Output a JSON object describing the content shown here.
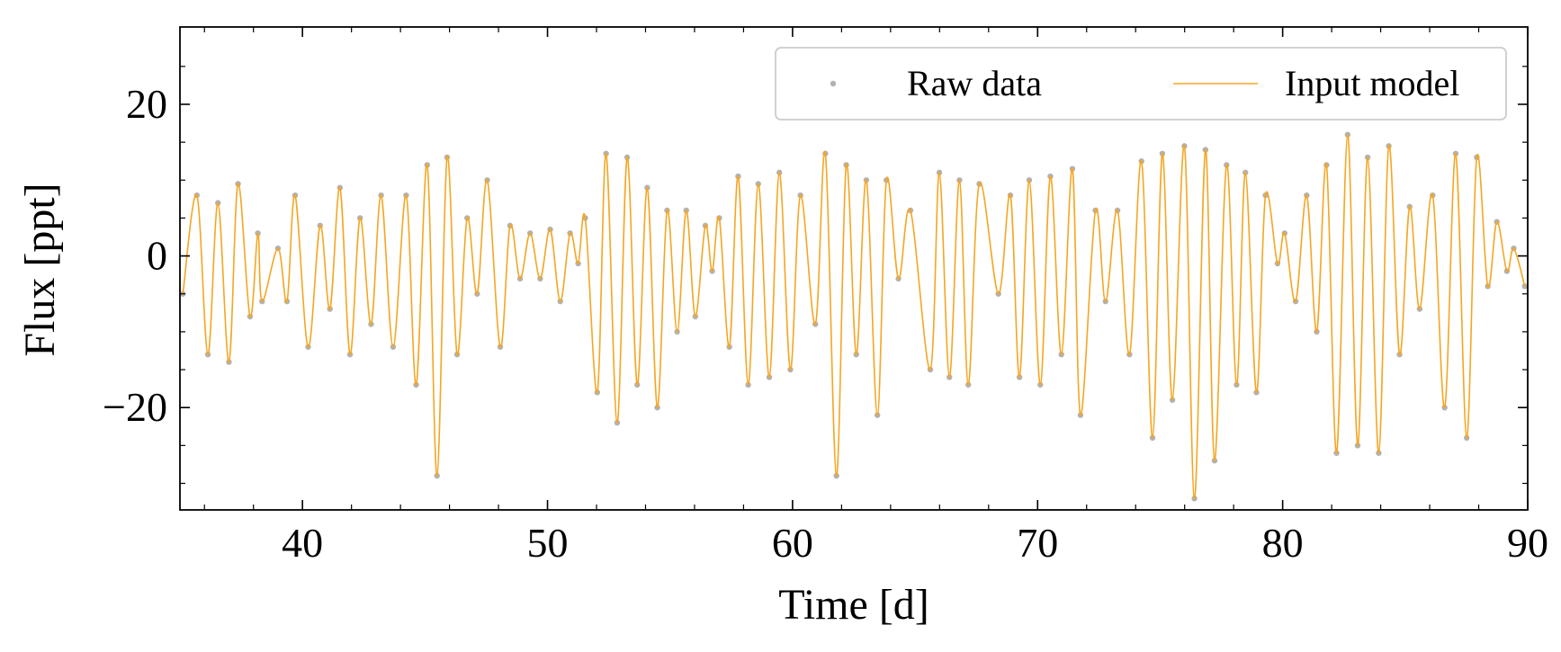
{
  "chart_data": {
    "type": "line",
    "xlabel": "Time [d]",
    "ylabel": "Flux [ppt]",
    "xlim": [
      35,
      90
    ],
    "ylim": [
      -33.5,
      30.2
    ],
    "xticks": [
      40,
      50,
      60,
      70,
      80,
      90
    ],
    "yticks": [
      {
        "value": -20,
        "label": "−20"
      },
      0,
      20
    ],
    "minor_xticks": [
      36,
      38,
      42,
      44,
      46,
      48,
      52,
      54,
      56,
      58,
      62,
      64,
      66,
      68,
      72,
      74,
      76,
      78,
      82,
      84,
      86,
      88
    ],
    "minor_yticks": [
      -30,
      -25,
      -15,
      -10,
      -5,
      5,
      10,
      15,
      25
    ],
    "legend": "upper right",
    "x": [
      35.12,
      35.69,
      36.14,
      36.55,
      37.0,
      37.37,
      37.86,
      38.18,
      38.35,
      39.0,
      39.37,
      39.7,
      40.23,
      40.72,
      41.12,
      41.53,
      41.94,
      42.35,
      42.8,
      43.21,
      43.7,
      44.23,
      44.64,
      45.09,
      45.49,
      45.9,
      46.31,
      46.72,
      47.13,
      47.54,
      48.07,
      48.47,
      48.88,
      49.29,
      49.7,
      50.11,
      50.52,
      50.92,
      51.25,
      51.54,
      52.03,
      52.39,
      52.84,
      53.25,
      53.66,
      54.07,
      54.48,
      54.88,
      55.29,
      55.66,
      56.03,
      56.44,
      56.72,
      57.01,
      57.42,
      57.78,
      58.19,
      58.6,
      59.05,
      59.46,
      59.91,
      60.32,
      60.93,
      61.34,
      61.79,
      62.19,
      62.6,
      63.01,
      63.46,
      63.83,
      64.32,
      64.81,
      65.62,
      65.99,
      66.4,
      66.81,
      67.17,
      67.62,
      68.4,
      68.89,
      69.26,
      69.66,
      70.11,
      70.52,
      70.97,
      71.42,
      71.75,
      72.36,
      72.77,
      73.26,
      73.75,
      74.24,
      74.69,
      75.09,
      75.5,
      75.99,
      76.4,
      76.85,
      77.22,
      77.71,
      78.12,
      78.48,
      78.93,
      79.3,
      79.79,
      80.08,
      80.53,
      80.98,
      81.39,
      81.79,
      82.2,
      82.65,
      83.06,
      83.47,
      83.92,
      84.33,
      84.77,
      85.18,
      85.59,
      86.12,
      86.61,
      87.06,
      87.51,
      87.92,
      88.37,
      88.74,
      89.15,
      89.43,
      89.88
    ],
    "series": [
      {
        "name": "Raw data",
        "style": "markers",
        "color": "#555555",
        "values": [
          -5,
          8,
          -13,
          7,
          -14,
          9.5,
          -8,
          3,
          -6,
          1,
          -6,
          8,
          -12,
          4,
          -7,
          9,
          -13,
          5,
          -9,
          8,
          -12,
          8,
          -17,
          12,
          -29,
          13,
          -13,
          5,
          -5,
          10,
          -12,
          4,
          -3,
          3,
          -3,
          3.5,
          -6,
          3,
          -1,
          5,
          -18,
          13.5,
          -22,
          13,
          -17,
          9,
          -20,
          6,
          -10,
          6,
          -8,
          4,
          -2,
          5,
          -12,
          10.5,
          -17,
          9.5,
          -16,
          11,
          -15,
          8,
          -9,
          13.5,
          -29,
          12,
          -13,
          10,
          -21,
          10,
          -3,
          6,
          -15,
          11,
          -16,
          10,
          -17,
          9.5,
          -5,
          8,
          -16,
          10,
          -17,
          10.5,
          -13,
          11.5,
          -21,
          6,
          -6,
          6,
          -13,
          12.5,
          -24,
          13.5,
          -19,
          14.5,
          -32,
          14,
          -27,
          12,
          -17,
          11,
          -18,
          8,
          -1,
          3,
          -6,
          8,
          -10,
          12,
          -26,
          16,
          -25,
          13,
          -26,
          14.5,
          -13,
          6.5,
          -7,
          8,
          -20,
          13.5,
          -24,
          13,
          -4,
          4.5,
          -2,
          1,
          -4
        ]
      },
      {
        "name": "Input model",
        "style": "line",
        "color": "#f5a623",
        "values": [
          -5,
          8,
          -13,
          7,
          -14,
          9.5,
          -8,
          3,
          -6,
          1,
          -6,
          8,
          -12,
          4,
          -7,
          9,
          -13,
          5,
          -9,
          8,
          -12,
          8,
          -17,
          12,
          -29,
          13,
          -13,
          5,
          -5,
          10,
          -12,
          4,
          -3,
          3,
          -3,
          3.5,
          -6,
          3,
          -1,
          5,
          -18,
          13.5,
          -22,
          13,
          -17,
          9,
          -20,
          6,
          -10,
          6,
          -8,
          4,
          -2,
          5,
          -12,
          10.5,
          -17,
          9.5,
          -16,
          11,
          -15,
          8,
          -9,
          13.5,
          -29,
          12,
          -13,
          10,
          -21,
          10,
          -3,
          6,
          -15,
          11,
          -16,
          10,
          -17,
          9.5,
          -5,
          8,
          -16,
          10,
          -17,
          10.5,
          -13,
          11.5,
          -21,
          6,
          -6,
          6,
          -13,
          12.5,
          -24,
          13.5,
          -19,
          14.5,
          -32,
          14,
          -27,
          12,
          -17,
          11,
          -18,
          8,
          -1,
          3,
          -6,
          8,
          -10,
          12,
          -26,
          16,
          -25,
          13,
          -26,
          14.5,
          -13,
          6.5,
          -7,
          8,
          -20,
          13.5,
          -24,
          13,
          -4,
          4.5,
          -2,
          1,
          -4
        ]
      }
    ]
  }
}
